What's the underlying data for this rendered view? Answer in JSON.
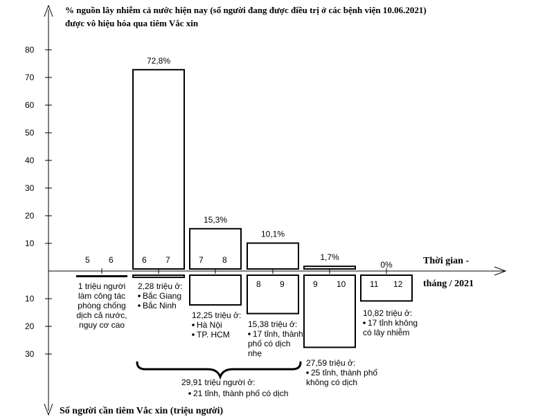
{
  "chart_data": {
    "type": "bar",
    "title": "% nguồn lây nhiễm cả nước hiện nay (số người đang được điều trị ở các bệnh viện 10.06.2021) được vô hiệu hóa qua tiêm Vắc xin",
    "title_lines": [
      "% nguồn lây nhiễm cả nước hiện nay (số người đang được điều trị ở các bệnh viện 10.06.2021)",
      "được vô hiệu hóa qua tiêm Vắc xin"
    ],
    "xlabel_lines": [
      "Thời gian -",
      "tháng / 2021"
    ],
    "ylabel_bottom": "Số người cần tiêm Vắc xin (triệu người)",
    "y_up_ticks": [
      "10",
      "20",
      "30",
      "40",
      "50",
      "60",
      "70",
      "80"
    ],
    "y_down_ticks": [
      "10",
      "20",
      "30"
    ],
    "ylim_up": [
      0,
      80
    ],
    "ylim_down": [
      0,
      30
    ],
    "groups": [
      {
        "months": [
          "5",
          "6"
        ],
        "percent": 0,
        "percent_label": "",
        "people_millions": 1,
        "note_lines": [
          "1 triệu người",
          "làm công tác",
          "phòng chống",
          "dịch cả nước,",
          "nguy cơ cao"
        ]
      },
      {
        "months": [
          "6",
          "7"
        ],
        "percent": 72.8,
        "percent_label": "72,8%",
        "people_millions": 2.28,
        "note_lines": [
          "2,28 triệu ở:",
          "Bắc Giang",
          "Bắc Ninh"
        ]
      },
      {
        "months": [
          "7",
          "8"
        ],
        "percent": 15.3,
        "percent_label": "15,3%",
        "people_millions": 12.25,
        "note_lines": [
          "12,25 triệu ở:",
          "Hà Nội",
          "TP. HCM"
        ]
      },
      {
        "months": [
          "8",
          "9"
        ],
        "percent": 10.1,
        "percent_label": "10,1%",
        "people_millions": 15.38,
        "note_lines": [
          "15,38 triệu ở:",
          "17 tỉnh, thành",
          "phố có dịch",
          "nhẹ"
        ]
      },
      {
        "months": [
          "9",
          "10"
        ],
        "percent": 1.7,
        "percent_label": "1,7%",
        "people_millions": 27.59,
        "note_lines": [
          "27,59 triệu ở:",
          "25 tỉnh, thành phố",
          "không có dịch"
        ]
      },
      {
        "months": [
          "11",
          "12"
        ],
        "percent": 0,
        "percent_label": "0%",
        "people_millions": 10.82,
        "note_lines": [
          "10,82 triệu ở:",
          "17 tỉnh không",
          "có lây nhiễm"
        ]
      }
    ],
    "brace_note_lines": [
      "29,91 triệu người ở:",
      "21 tỉnh, thành phố có dịch"
    ]
  }
}
